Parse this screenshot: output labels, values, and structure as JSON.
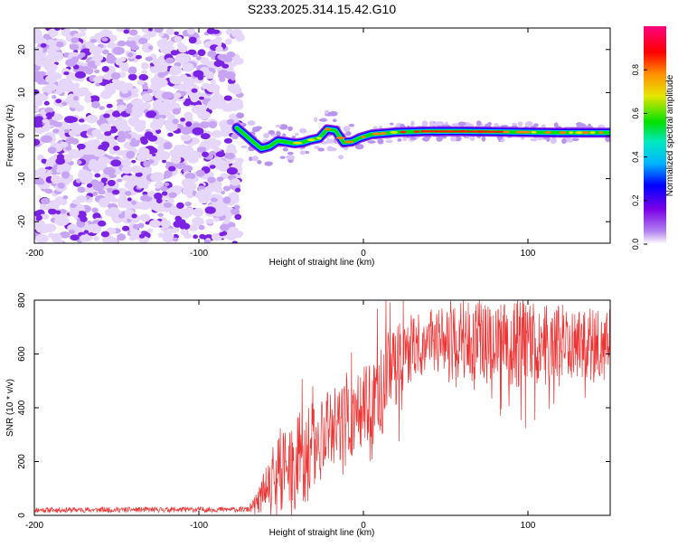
{
  "figure": {
    "title": "S233.2025.314.15.42.G10"
  },
  "chart_data": [
    {
      "type": "heatmap",
      "title": "S233.2025.314.15.42.G10",
      "xlabel": "Height of straight line (km)",
      "ylabel": "Frequency (Hz)",
      "xlim": [
        -200,
        150
      ],
      "ylim": [
        -25,
        25
      ],
      "xticks": [
        -200,
        -100,
        0,
        100
      ],
      "xtick_labels": [
        "-200",
        "-100",
        "0",
        "100"
      ],
      "yticks": [
        -20,
        -10,
        0,
        10,
        20
      ],
      "ytick_labels": [
        "-20",
        "-10",
        "0",
        "10",
        "20"
      ],
      "noise_region_km": [
        -200,
        -75
      ],
      "ridge": {
        "x_km": [
          -77,
          -72,
          -67,
          -62,
          -57,
          -52,
          -47,
          -42,
          -37,
          -32,
          -27,
          -22,
          -17,
          -12,
          -7,
          -2,
          5,
          20,
          40,
          60,
          80,
          100,
          120,
          150
        ],
        "freq_hz": [
          1.8,
          0.2,
          -1.5,
          -3.0,
          -2.5,
          -1.2,
          -1.5,
          -1.8,
          -1.6,
          -1.0,
          -0.6,
          1.5,
          1.2,
          -1.6,
          -1.4,
          -0.5,
          0.3,
          0.8,
          1.0,
          1.0,
          0.9,
          0.8,
          0.7,
          0.7
        ]
      },
      "colorbar": {
        "label": "Normalized spectral amplitude",
        "range": [
          0.0,
          1.0
        ],
        "ticks": [
          0.0,
          0.2,
          0.4,
          0.6,
          0.8
        ],
        "tick_labels": [
          "0.0",
          "0.2",
          "0.4",
          "0.6",
          "0.8"
        ],
        "colors": [
          "#ffffff",
          "#7b00e6",
          "#0000ff",
          "#00c8ff",
          "#00e000",
          "#e6e600",
          "#ff8000",
          "#ff0000",
          "#ff0080"
        ]
      }
    },
    {
      "type": "line",
      "xlabel": "Height of straight line (km)",
      "ylabel": "SNR (10 * v/v)",
      "xlim": [
        -200,
        150
      ],
      "ylim": [
        0,
        800
      ],
      "xticks": [
        -200,
        -100,
        0,
        100
      ],
      "xtick_labels": [
        "-200",
        "-100",
        "0",
        "100"
      ],
      "yticks": [
        0,
        200,
        400,
        600,
        800
      ],
      "ytick_labels": [
        "0",
        "200",
        "400",
        "600",
        "800"
      ],
      "color": "#ee3333",
      "envelope": {
        "x": [
          -200,
          -70,
          -65,
          -60,
          -55,
          -50,
          -45,
          -40,
          -35,
          -30,
          -25,
          -20,
          -15,
          -10,
          -5,
          0,
          5,
          10,
          15,
          20,
          25,
          30,
          35,
          40,
          50,
          60,
          70,
          80,
          90,
          100,
          110,
          120,
          130,
          140,
          150
        ],
        "mean": [
          20,
          22,
          40,
          90,
          150,
          170,
          180,
          200,
          230,
          260,
          290,
          310,
          330,
          340,
          370,
          400,
          430,
          450,
          520,
          560,
          600,
          630,
          640,
          650,
          650,
          650,
          640,
          650,
          640,
          640,
          630,
          650,
          640,
          630,
          650
        ],
        "spread": [
          10,
          10,
          40,
          80,
          120,
          160,
          160,
          180,
          180,
          160,
          160,
          160,
          150,
          160,
          140,
          140,
          160,
          180,
          170,
          150,
          150,
          130,
          120,
          120,
          130,
          140,
          150,
          140,
          170,
          160,
          150,
          140,
          130,
          140,
          120
        ]
      },
      "sample_step_km": 0.25,
      "rng_seed": 11
    }
  ]
}
